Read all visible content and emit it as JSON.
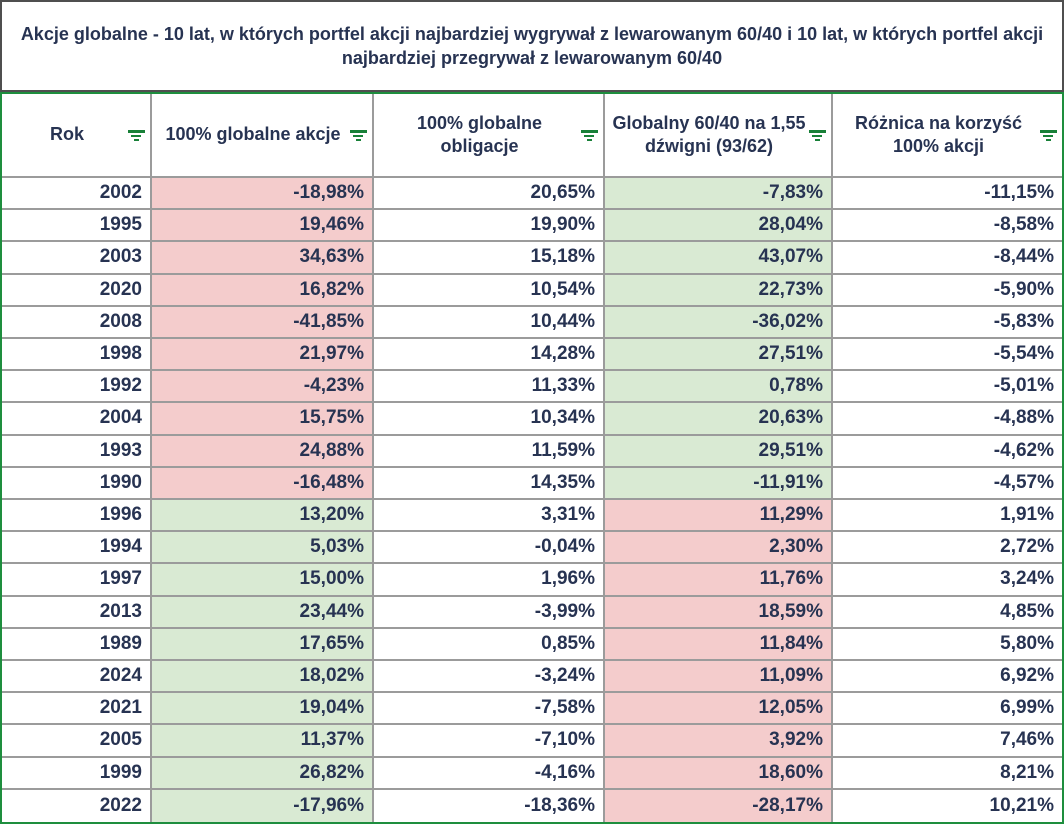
{
  "title": "Akcje globalne - 10 lat, w których portfel akcji najbardziej wygrywał z lewarowanym 60/40 i 10 lat, w których portfel akcji najbardziej przegrywał z lewarowanym 60/40",
  "colors": {
    "pink": "#f4cccc",
    "green": "#d9ead3",
    "grid_line": "#9b9b9b",
    "table_border": "#1e8e3e",
    "title_border": "#4f4f4f",
    "text": "#273352",
    "filter_icon": "#188038"
  },
  "columns": [
    {
      "label": "Rok",
      "filter_icon": "filter-icon"
    },
    {
      "label": "100% globalne akcje",
      "filter_icon": "filter-icon"
    },
    {
      "label": "100% globalne obligacje",
      "filter_icon": "filter-icon"
    },
    {
      "label": "Globalny 60/40 na 1,55 dźwigni (93/62)",
      "filter_icon": "filter-icon"
    },
    {
      "label": "Różnica na korzyść 100% akcji",
      "filter_icon": "filter-icon"
    }
  ],
  "rows": [
    {
      "rok": "2002",
      "akcje": "-18,98%",
      "obligacje": "20,65%",
      "dzwignia": "-7,83%",
      "roznica": "-11,15%",
      "akcje_bg": "pink",
      "dzwignia_bg": "green"
    },
    {
      "rok": "1995",
      "akcje": "19,46%",
      "obligacje": "19,90%",
      "dzwignia": "28,04%",
      "roznica": "-8,58%",
      "akcje_bg": "pink",
      "dzwignia_bg": "green"
    },
    {
      "rok": "2003",
      "akcje": "34,63%",
      "obligacje": "15,18%",
      "dzwignia": "43,07%",
      "roznica": "-8,44%",
      "akcje_bg": "pink",
      "dzwignia_bg": "green"
    },
    {
      "rok": "2020",
      "akcje": "16,82%",
      "obligacje": "10,54%",
      "dzwignia": "22,73%",
      "roznica": "-5,90%",
      "akcje_bg": "pink",
      "dzwignia_bg": "green"
    },
    {
      "rok": "2008",
      "akcje": "-41,85%",
      "obligacje": "10,44%",
      "dzwignia": "-36,02%",
      "roznica": "-5,83%",
      "akcje_bg": "pink",
      "dzwignia_bg": "green"
    },
    {
      "rok": "1998",
      "akcje": "21,97%",
      "obligacje": "14,28%",
      "dzwignia": "27,51%",
      "roznica": "-5,54%",
      "akcje_bg": "pink",
      "dzwignia_bg": "green"
    },
    {
      "rok": "1992",
      "akcje": "-4,23%",
      "obligacje": "11,33%",
      "dzwignia": "0,78%",
      "roznica": "-5,01%",
      "akcje_bg": "pink",
      "dzwignia_bg": "green"
    },
    {
      "rok": "2004",
      "akcje": "15,75%",
      "obligacje": "10,34%",
      "dzwignia": "20,63%",
      "roznica": "-4,88%",
      "akcje_bg": "pink",
      "dzwignia_bg": "green"
    },
    {
      "rok": "1993",
      "akcje": "24,88%",
      "obligacje": "11,59%",
      "dzwignia": "29,51%",
      "roznica": "-4,62%",
      "akcje_bg": "pink",
      "dzwignia_bg": "green"
    },
    {
      "rok": "1990",
      "akcje": "-16,48%",
      "obligacje": "14,35%",
      "dzwignia": "-11,91%",
      "roznica": "-4,57%",
      "akcje_bg": "pink",
      "dzwignia_bg": "green"
    },
    {
      "rok": "1996",
      "akcje": "13,20%",
      "obligacje": "3,31%",
      "dzwignia": "11,29%",
      "roznica": "1,91%",
      "akcje_bg": "green",
      "dzwignia_bg": "pink"
    },
    {
      "rok": "1994",
      "akcje": "5,03%",
      "obligacje": "-0,04%",
      "dzwignia": "2,30%",
      "roznica": "2,72%",
      "akcje_bg": "green",
      "dzwignia_bg": "pink"
    },
    {
      "rok": "1997",
      "akcje": "15,00%",
      "obligacje": "1,96%",
      "dzwignia": "11,76%",
      "roznica": "3,24%",
      "akcje_bg": "green",
      "dzwignia_bg": "pink"
    },
    {
      "rok": "2013",
      "akcje": "23,44%",
      "obligacje": "-3,99%",
      "dzwignia": "18,59%",
      "roznica": "4,85%",
      "akcje_bg": "green",
      "dzwignia_bg": "pink"
    },
    {
      "rok": "1989",
      "akcje": "17,65%",
      "obligacje": "0,85%",
      "dzwignia": "11,84%",
      "roznica": "5,80%",
      "akcje_bg": "green",
      "dzwignia_bg": "pink"
    },
    {
      "rok": "2024",
      "akcje": "18,02%",
      "obligacje": "-3,24%",
      "dzwignia": "11,09%",
      "roznica": "6,92%",
      "akcje_bg": "green",
      "dzwignia_bg": "pink"
    },
    {
      "rok": "2021",
      "akcje": "19,04%",
      "obligacje": "-7,58%",
      "dzwignia": "12,05%",
      "roznica": "6,99%",
      "akcje_bg": "green",
      "dzwignia_bg": "pink"
    },
    {
      "rok": "2005",
      "akcje": "11,37%",
      "obligacje": "-7,10%",
      "dzwignia": "3,92%",
      "roznica": "7,46%",
      "akcje_bg": "green",
      "dzwignia_bg": "pink"
    },
    {
      "rok": "1999",
      "akcje": "26,82%",
      "obligacje": "-4,16%",
      "dzwignia": "18,60%",
      "roznica": "8,21%",
      "akcje_bg": "green",
      "dzwignia_bg": "pink"
    },
    {
      "rok": "2022",
      "akcje": "-17,96%",
      "obligacje": "-18,36%",
      "dzwignia": "-28,17%",
      "roznica": "10,21%",
      "akcje_bg": "green",
      "dzwignia_bg": "pink"
    }
  ]
}
